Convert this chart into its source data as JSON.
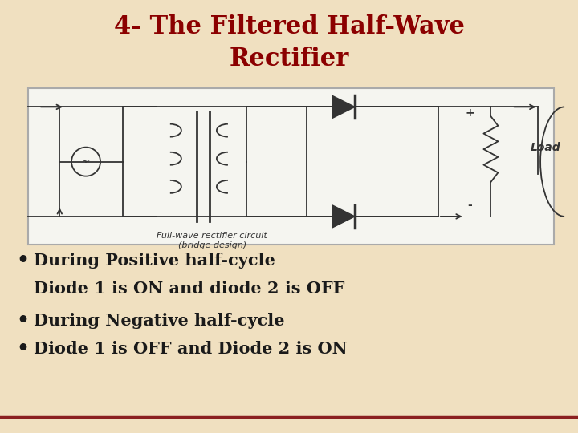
{
  "title_line1": "4- The Filtered Half-Wave",
  "title_line2": "Rectifier",
  "title_color": "#8B0000",
  "background_color": "#F0E0C0",
  "bullet_color": "#1a1a1a",
  "bullet_points": [
    "During Positive half-cycle",
    "Diode 1 is ON and diode 2 is OFF",
    "During Negative half-cycle",
    "Diode 1 is OFF and Diode 2 is ON"
  ],
  "bullet_has_dot": [
    true,
    false,
    true,
    true
  ],
  "bottom_line_color": "#8B2020",
  "title_fontsize": 22,
  "bullet_fontsize": 15
}
